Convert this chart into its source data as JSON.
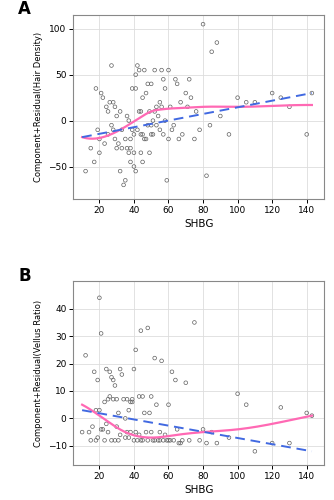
{
  "panel_A": {
    "label": "A",
    "xlabel": "SHBG",
    "ylabel": "Component+Residual(Hair Density)",
    "xlim": [
      5,
      150
    ],
    "ylim": [
      -85,
      115
    ],
    "xticks": [
      20,
      40,
      60,
      80,
      100,
      120,
      140
    ],
    "yticks": [
      -50,
      0,
      50,
      100
    ],
    "scatter_x": [
      12,
      15,
      17,
      18,
      19,
      20,
      20,
      21,
      22,
      23,
      24,
      25,
      25,
      26,
      27,
      27,
      28,
      28,
      29,
      29,
      30,
      30,
      31,
      32,
      32,
      33,
      33,
      34,
      35,
      35,
      36,
      36,
      37,
      37,
      38,
      38,
      38,
      39,
      39,
      40,
      40,
      40,
      41,
      41,
      41,
      42,
      42,
      43,
      43,
      44,
      44,
      44,
      45,
      45,
      45,
      46,
      46,
      47,
      47,
      48,
      48,
      49,
      49,
      50,
      50,
      50,
      51,
      51,
      52,
      52,
      53,
      53,
      54,
      55,
      55,
      56,
      56,
      57,
      57,
      58,
      58,
      59,
      60,
      60,
      61,
      62,
      63,
      64,
      65,
      66,
      67,
      68,
      70,
      71,
      72,
      73,
      75,
      76,
      78,
      80,
      82,
      84,
      85,
      88,
      90,
      95,
      100,
      105,
      110,
      120,
      125,
      130,
      140,
      143
    ],
    "scatter_y": [
      -55,
      -30,
      -45,
      35,
      -10,
      -20,
      -35,
      30,
      25,
      -25,
      15,
      10,
      -15,
      20,
      60,
      -5,
      20,
      -10,
      15,
      -20,
      -30,
      5,
      -25,
      -55,
      10,
      -30,
      -10,
      -70,
      -20,
      -65,
      5,
      -30,
      -35,
      0,
      -30,
      -20,
      -45,
      35,
      -10,
      -15,
      -35,
      -50,
      50,
      35,
      -55,
      60,
      -10,
      55,
      10,
      -15,
      10,
      -35,
      -15,
      25,
      -45,
      55,
      -20,
      30,
      -20,
      40,
      -5,
      -35,
      10,
      -15,
      -5,
      40,
      0,
      -15,
      55,
      10,
      15,
      -5,
      5,
      -10,
      20,
      55,
      15,
      45,
      -15,
      35,
      0,
      -65,
      -20,
      55,
      15,
      -10,
      -5,
      45,
      40,
      -20,
      20,
      -15,
      30,
      15,
      45,
      25,
      -20,
      10,
      -10,
      105,
      -60,
      -5,
      75,
      85,
      5,
      -15,
      25,
      20,
      20,
      30,
      25,
      15,
      -15,
      30
    ],
    "pink_smooth_x": [
      10,
      30,
      45,
      50,
      55,
      60,
      70,
      80,
      100,
      120,
      143
    ],
    "pink_smooth_y": [
      -18,
      -12,
      5,
      10,
      12,
      13,
      14,
      15,
      15,
      16,
      17
    ],
    "blue_line_x": [
      10,
      143
    ],
    "blue_line_y": [
      -18,
      30
    ],
    "pink_color": "#FF69B4",
    "blue_color": "#4169E1",
    "scatter_color": "#606060",
    "bg_color": "#FFFFFF",
    "grid_color": "#DDDDDD"
  },
  "panel_B": {
    "label": "B",
    "xlabel": "SHBG",
    "ylabel": "Component+Residual(Vellus Ratio)",
    "xlim": [
      5,
      150
    ],
    "ylim": [
      -17,
      50
    ],
    "xticks": [
      20,
      40,
      60,
      80,
      100,
      120,
      140
    ],
    "yticks": [
      -10,
      0,
      10,
      20,
      30,
      40
    ],
    "scatter_x": [
      10,
      12,
      14,
      15,
      16,
      17,
      18,
      18,
      19,
      19,
      20,
      20,
      21,
      21,
      22,
      23,
      23,
      24,
      24,
      25,
      25,
      26,
      26,
      27,
      27,
      28,
      28,
      29,
      29,
      30,
      30,
      31,
      31,
      32,
      32,
      33,
      34,
      35,
      35,
      36,
      36,
      37,
      37,
      38,
      38,
      39,
      39,
      40,
      40,
      41,
      41,
      42,
      43,
      43,
      44,
      44,
      45,
      45,
      46,
      47,
      48,
      48,
      49,
      50,
      50,
      51,
      52,
      52,
      53,
      54,
      55,
      55,
      56,
      57,
      58,
      59,
      60,
      60,
      61,
      62,
      63,
      64,
      65,
      66,
      67,
      68,
      70,
      72,
      75,
      78,
      80,
      82,
      85,
      88,
      95,
      100,
      105,
      110,
      120,
      125,
      130,
      140,
      143
    ],
    "scatter_y": [
      -5,
      23,
      -5,
      -8,
      -3,
      17,
      -8,
      3,
      -7,
      14,
      3,
      44,
      -4,
      31,
      -4,
      6,
      -8,
      18,
      -2,
      7,
      -5,
      8,
      17,
      15,
      -8,
      7,
      14,
      12,
      -8,
      -3,
      7,
      2,
      -8,
      18,
      -6,
      16,
      7,
      0,
      -7,
      -5,
      7,
      3,
      -7,
      6,
      -5,
      7,
      6,
      -8,
      18,
      25,
      -5,
      -8,
      -6,
      8,
      32,
      -8,
      -8,
      8,
      2,
      -5,
      33,
      -8,
      2,
      -5,
      8,
      -8,
      -8,
      22,
      5,
      -8,
      -8,
      -5,
      21,
      -8,
      -6,
      -8,
      -8,
      5,
      -8,
      17,
      -8,
      14,
      -4,
      -9,
      -9,
      -8,
      13,
      -8,
      35,
      -8,
      -4,
      -9,
      -5,
      -9,
      -7,
      9,
      5,
      -12,
      -9,
      4,
      -9,
      2,
      1
    ],
    "pink_smooth_x": [
      10,
      20,
      35,
      50,
      65,
      80,
      100,
      120,
      143
    ],
    "pink_smooth_y": [
      5,
      1,
      -5,
      -7,
      -6,
      -5,
      -4,
      -2,
      1
    ],
    "blue_line_x": [
      10,
      143
    ],
    "blue_line_y": [
      3,
      -12
    ],
    "pink_color": "#FF69B4",
    "blue_color": "#4169E1",
    "scatter_color": "#606060",
    "bg_color": "#FFFFFF",
    "grid_color": "#DDDDDD"
  }
}
